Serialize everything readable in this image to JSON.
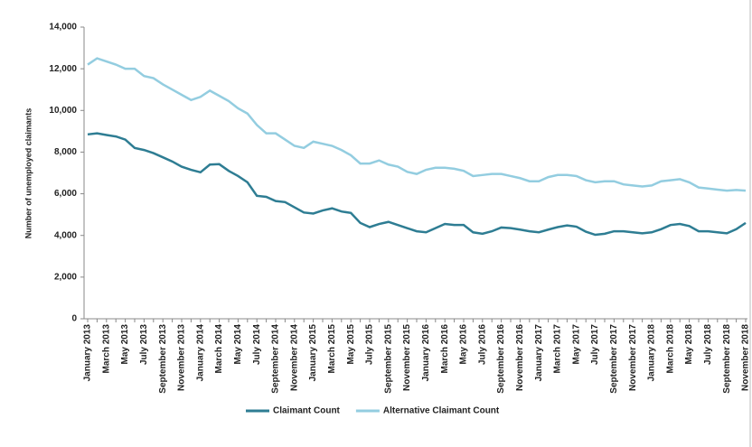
{
  "chart_data": {
    "type": "line",
    "y_label": "Number of unemployed claimants",
    "categories": [
      "January 2013",
      null,
      "March 2013",
      null,
      "May 2013",
      null,
      "July 2013",
      null,
      "September 2013",
      null,
      "November 2013",
      null,
      "January 2014",
      null,
      "March 2014",
      null,
      "May 2014",
      null,
      "July 2014",
      null,
      "September 2014",
      null,
      "November 2014",
      null,
      "January 2015",
      null,
      "March 2015",
      null,
      "May 2015",
      null,
      "July 2015",
      null,
      "September 2015",
      null,
      "November 2015",
      null,
      "January 2016",
      null,
      "March 2016",
      null,
      "May 2016",
      null,
      "July 2016",
      null,
      "September 2016",
      null,
      "November 2016",
      null,
      "January 2017",
      null,
      "March 2017",
      null,
      "May 2017",
      null,
      "July 2017",
      null,
      "September 2017",
      null,
      "November 2017",
      null,
      "January 2018",
      null,
      "March 2018",
      null,
      "May 2018",
      null,
      "July 2018",
      null,
      "September 2018",
      null,
      "November 2018"
    ],
    "series": [
      {
        "name": "Claimant Count",
        "color": "#2e7d93",
        "values": [
          8850,
          8900,
          8820,
          8750,
          8600,
          8200,
          8100,
          7950,
          7750,
          7550,
          7300,
          7150,
          7030,
          7400,
          7420,
          7100,
          6850,
          6550,
          5900,
          5850,
          5650,
          5600,
          5350,
          5100,
          5050,
          5200,
          5300,
          5150,
          5080,
          4600,
          4400,
          4550,
          4650,
          4500,
          4350,
          4200,
          4150,
          4350,
          4550,
          4500,
          4500,
          4150,
          4080,
          4200,
          4380,
          4350,
          4280,
          4200,
          4150,
          4280,
          4400,
          4480,
          4420,
          4180,
          4030,
          4080,
          4200,
          4200,
          4150,
          4100,
          4150,
          4300,
          4500,
          4550,
          4450,
          4200,
          4200,
          4150,
          4100,
          4300,
          4600
        ]
      },
      {
        "name": "Alternative Claimant Count",
        "color": "#93cde0",
        "values": [
          12200,
          12500,
          12350,
          12200,
          12000,
          12000,
          11650,
          11550,
          11250,
          11000,
          10750,
          10500,
          10650,
          10950,
          10700,
          10450,
          10100,
          9850,
          9300,
          8900,
          8900,
          8600,
          8300,
          8200,
          8500,
          8400,
          8300,
          8100,
          7850,
          7450,
          7450,
          7600,
          7400,
          7300,
          7050,
          6950,
          7150,
          7250,
          7250,
          7200,
          7100,
          6850,
          6900,
          6950,
          6950,
          6850,
          6750,
          6600,
          6600,
          6800,
          6900,
          6900,
          6850,
          6650,
          6550,
          6600,
          6600,
          6450,
          6400,
          6350,
          6400,
          6600,
          6650,
          6700,
          6550,
          6300,
          6250,
          6200,
          6150,
          6180,
          6150
        ]
      }
    ],
    "ylim": [
      0,
      14000
    ],
    "yticks": [
      0,
      {
        "value": 2000,
        "label": "2,000"
      },
      {
        "value": 4000,
        "label": "4,000"
      },
      {
        "value": 6000,
        "label": "6,000"
      },
      {
        "value": 8000,
        "label": "8,000"
      },
      {
        "value": 10000,
        "label": "10,000"
      },
      {
        "value": 12000,
        "label": "12,000"
      },
      {
        "value": 14000,
        "label": "14,000"
      }
    ],
    "grid": false,
    "legend": "bottom"
  }
}
